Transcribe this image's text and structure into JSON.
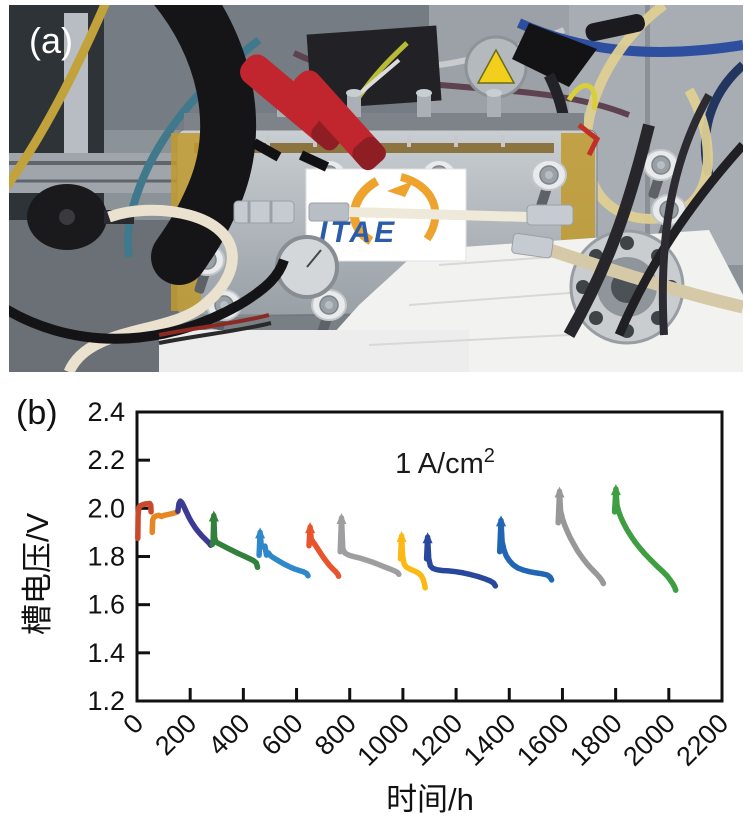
{
  "figure": {
    "panel_a": {
      "label": "(a)",
      "logo_text": "ITAE"
    },
    "panel_b": {
      "label": "(b)"
    }
  },
  "chart_data": {
    "type": "line",
    "xlabel": "时间/h",
    "ylabel": "槽电压/V",
    "annotation_base": "1 A/cm",
    "annotation_sup": "2",
    "xlim": [
      0,
      2200
    ],
    "ylim": [
      1.2,
      2.4
    ],
    "grid": false,
    "legend": "none",
    "xticks": [
      {
        "v": 0,
        "label": "0"
      },
      {
        "v": 200,
        "label": "200"
      },
      {
        "v": 400,
        "label": "400"
      },
      {
        "v": 600,
        "label": "600"
      },
      {
        "v": 800,
        "label": "800"
      },
      {
        "v": 1000,
        "label": "1000"
      },
      {
        "v": 1200,
        "label": "1200"
      },
      {
        "v": 1400,
        "label": "1400"
      },
      {
        "v": 1600,
        "label": "1600"
      },
      {
        "v": 1800,
        "label": "1800"
      },
      {
        "v": 2000,
        "label": "2000"
      },
      {
        "v": 2200,
        "label": "2200"
      }
    ],
    "yticks": [
      {
        "v": 2.4,
        "label": "2.4"
      },
      {
        "v": 2.2,
        "label": "2.2"
      },
      {
        "v": 2.0,
        "label": "2.0"
      },
      {
        "v": 1.8,
        "label": "1.8"
      },
      {
        "v": 1.6,
        "label": "1.6"
      },
      {
        "v": 1.4,
        "label": "1.4"
      },
      {
        "v": 1.2,
        "label": "1.2"
      }
    ],
    "series": [
      {
        "name": "segment-1",
        "color": "#c9492a",
        "points": [
          [
            3,
            1.875
          ],
          [
            4,
            1.97
          ],
          [
            7,
            2.005
          ],
          [
            15,
            2.012
          ],
          [
            30,
            2.018
          ],
          [
            48,
            2.02
          ],
          [
            52,
            2.012
          ],
          [
            53,
            1.985
          ]
        ]
      },
      {
        "name": "segment-2",
        "color": "#e58722",
        "points": [
          [
            57,
            1.9
          ],
          [
            59,
            1.952
          ],
          [
            63,
            1.963
          ],
          [
            72,
            1.968
          ],
          [
            82,
            1.971
          ],
          [
            92,
            1.966
          ],
          [
            102,
            1.971
          ],
          [
            118,
            1.975
          ],
          [
            135,
            1.979
          ],
          [
            150,
            1.984
          ]
        ]
      },
      {
        "name": "segment-3",
        "color": "#3c3a92",
        "points": [
          [
            154,
            1.988
          ],
          [
            158,
            2.02
          ],
          [
            163,
            2.03
          ],
          [
            169,
            2.024
          ],
          [
            176,
            2.008
          ],
          [
            186,
            1.984
          ],
          [
            196,
            1.961
          ],
          [
            207,
            1.94
          ],
          [
            218,
            1.921
          ],
          [
            229,
            1.905
          ],
          [
            240,
            1.891
          ],
          [
            251,
            1.878
          ],
          [
            262,
            1.866
          ],
          [
            271,
            1.856
          ],
          [
            277,
            1.847
          ]
        ]
      },
      {
        "name": "segment-4",
        "color": "#31803c",
        "peak": [
          289,
          1.97
        ],
        "points": [
          [
            283,
            1.85
          ],
          [
            286,
            1.858
          ],
          [
            289,
            1.97
          ],
          [
            292,
            1.878
          ],
          [
            297,
            1.86
          ],
          [
            308,
            1.853
          ],
          [
            323,
            1.845
          ],
          [
            342,
            1.834
          ],
          [
            362,
            1.823
          ],
          [
            382,
            1.812
          ],
          [
            402,
            1.802
          ],
          [
            421,
            1.792
          ],
          [
            438,
            1.783
          ],
          [
            449,
            1.773
          ],
          [
            453,
            1.755
          ]
        ]
      },
      {
        "name": "segment-5",
        "color": "#2f88c9",
        "peak": [
          463,
          1.9
        ],
        "points": [
          [
            459,
            1.805
          ],
          [
            463,
            1.9
          ],
          [
            467,
            1.848
          ],
          [
            474,
            1.84
          ],
          [
            481,
            1.843
          ],
          [
            487,
            1.806
          ],
          [
            494,
            1.815
          ],
          [
            503,
            1.802
          ],
          [
            517,
            1.792
          ],
          [
            534,
            1.781
          ],
          [
            553,
            1.769
          ],
          [
            572,
            1.758
          ],
          [
            591,
            1.749
          ],
          [
            610,
            1.742
          ],
          [
            627,
            1.736
          ],
          [
            638,
            1.73
          ],
          [
            643,
            1.72
          ]
        ]
      },
      {
        "name": "segment-6",
        "color": "#e8542c",
        "peak": [
          651,
          1.922
        ],
        "points": [
          [
            647,
            1.845
          ],
          [
            651,
            1.922
          ],
          [
            655,
            1.873
          ],
          [
            662,
            1.861
          ],
          [
            670,
            1.848
          ],
          [
            679,
            1.833
          ],
          [
            689,
            1.816
          ],
          [
            700,
            1.798
          ],
          [
            711,
            1.781
          ],
          [
            723,
            1.764
          ],
          [
            735,
            1.75
          ],
          [
            746,
            1.738
          ],
          [
            754,
            1.728
          ],
          [
            758,
            1.718
          ]
        ]
      },
      {
        "name": "segment-7",
        "color": "#9e9ea0",
        "peak": [
          769,
          1.96
        ],
        "points": [
          [
            764,
            1.82
          ],
          [
            769,
            1.96
          ],
          [
            774,
            1.832
          ],
          [
            782,
            1.814
          ],
          [
            796,
            1.806
          ],
          [
            814,
            1.8
          ],
          [
            836,
            1.794
          ],
          [
            860,
            1.786
          ],
          [
            884,
            1.777
          ],
          [
            908,
            1.767
          ],
          [
            931,
            1.757
          ],
          [
            952,
            1.748
          ],
          [
            969,
            1.74
          ],
          [
            980,
            1.733
          ],
          [
            985,
            1.726
          ]
        ]
      },
      {
        "name": "segment-8",
        "color": "#fcb813",
        "peak": [
          995,
          1.885
        ],
        "points": [
          [
            991,
            1.79
          ],
          [
            995,
            1.885
          ],
          [
            999,
            1.802
          ],
          [
            1005,
            1.768
          ],
          [
            1013,
            1.756
          ],
          [
            1026,
            1.748
          ],
          [
            1041,
            1.741
          ],
          [
            1056,
            1.733
          ],
          [
            1068,
            1.722
          ],
          [
            1076,
            1.706
          ],
          [
            1081,
            1.687
          ],
          [
            1084,
            1.67
          ]
        ]
      },
      {
        "name": "segment-9",
        "color": "#27489c",
        "peak": [
          1093,
          1.88
        ],
        "points": [
          [
            1089,
            1.79
          ],
          [
            1093,
            1.88
          ],
          [
            1097,
            1.792
          ],
          [
            1103,
            1.762
          ],
          [
            1112,
            1.751
          ],
          [
            1127,
            1.745
          ],
          [
            1147,
            1.742
          ],
          [
            1172,
            1.74
          ],
          [
            1199,
            1.737
          ],
          [
            1227,
            1.732
          ],
          [
            1255,
            1.725
          ],
          [
            1282,
            1.717
          ],
          [
            1307,
            1.708
          ],
          [
            1327,
            1.699
          ],
          [
            1341,
            1.69
          ],
          [
            1348,
            1.678
          ]
        ]
      },
      {
        "name": "segment-10",
        "color": "#2166b4",
        "peak": [
          1369,
          1.95
        ],
        "points": [
          [
            1364,
            1.82
          ],
          [
            1369,
            1.95
          ],
          [
            1373,
            1.862
          ],
          [
            1380,
            1.827
          ],
          [
            1389,
            1.802
          ],
          [
            1400,
            1.783
          ],
          [
            1414,
            1.766
          ],
          [
            1431,
            1.753
          ],
          [
            1452,
            1.744
          ],
          [
            1476,
            1.737
          ],
          [
            1501,
            1.732
          ],
          [
            1524,
            1.728
          ],
          [
            1543,
            1.723
          ],
          [
            1554,
            1.714
          ],
          [
            1559,
            1.703
          ]
        ]
      },
      {
        "name": "segment-11",
        "color": "#98989a",
        "peak": [
          1589,
          2.07
        ],
        "points": [
          [
            1584,
            1.94
          ],
          [
            1589,
            2.07
          ],
          [
            1593,
            1.988
          ],
          [
            1600,
            1.957
          ],
          [
            1608,
            1.931
          ],
          [
            1618,
            1.905
          ],
          [
            1630,
            1.877
          ],
          [
            1644,
            1.848
          ],
          [
            1659,
            1.82
          ],
          [
            1676,
            1.793
          ],
          [
            1693,
            1.769
          ],
          [
            1711,
            1.747
          ],
          [
            1727,
            1.729
          ],
          [
            1740,
            1.713
          ],
          [
            1749,
            1.699
          ],
          [
            1754,
            1.688
          ]
        ]
      },
      {
        "name": "segment-12",
        "color": "#3f9e41",
        "peak": [
          1801,
          2.08
        ],
        "points": [
          [
            1796,
            1.985
          ],
          [
            1801,
            2.08
          ],
          [
            1805,
            2.012
          ],
          [
            1812,
            1.985
          ],
          [
            1820,
            1.961
          ],
          [
            1830,
            1.938
          ],
          [
            1842,
            1.913
          ],
          [
            1857,
            1.886
          ],
          [
            1874,
            1.859
          ],
          [
            1892,
            1.834
          ],
          [
            1910,
            1.811
          ],
          [
            1928,
            1.79
          ],
          [
            1946,
            1.77
          ],
          [
            1963,
            1.752
          ],
          [
            1979,
            1.736
          ],
          [
            1993,
            1.72
          ],
          [
            2005,
            1.703
          ],
          [
            2015,
            1.687
          ],
          [
            2022,
            1.672
          ],
          [
            2026,
            1.66
          ]
        ]
      }
    ]
  }
}
